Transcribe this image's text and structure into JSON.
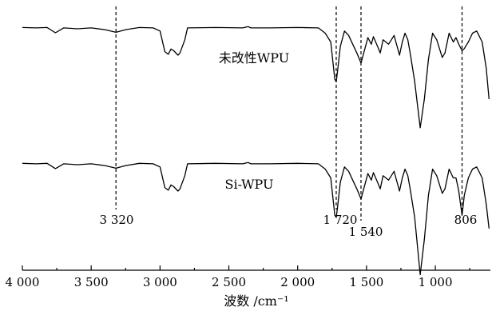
{
  "chart_data": {
    "type": "line",
    "xlabel": "波数 /cm⁻¹",
    "xlim": [
      4000,
      600
    ],
    "x_reversed": true,
    "x_ticks": [
      4000,
      3500,
      3000,
      2500,
      2000,
      1500,
      1000
    ],
    "x_tick_labels": [
      "4 000",
      "3 500",
      "3 000",
      "2 500",
      "2 000",
      "1 500",
      "1 000"
    ],
    "series": [
      {
        "name": "未改性WPU",
        "points": [
          [
            4000,
            0.03
          ],
          [
            3900,
            0.02
          ],
          [
            3820,
            0.03
          ],
          [
            3760,
            -0.09
          ],
          [
            3700,
            0.02
          ],
          [
            3600,
            0.0
          ],
          [
            3500,
            0.02
          ],
          [
            3400,
            -0.02
          ],
          [
            3320,
            -0.08
          ],
          [
            3250,
            -0.02
          ],
          [
            3150,
            0.03
          ],
          [
            3050,
            0.02
          ],
          [
            3000,
            -0.05
          ],
          [
            2965,
            -0.52
          ],
          [
            2940,
            -0.58
          ],
          [
            2920,
            -0.46
          ],
          [
            2900,
            -0.5
          ],
          [
            2870,
            -0.6
          ],
          [
            2855,
            -0.55
          ],
          [
            2820,
            -0.25
          ],
          [
            2800,
            0.02
          ],
          [
            2600,
            0.03
          ],
          [
            2400,
            0.02
          ],
          [
            2360,
            0.05
          ],
          [
            2340,
            0.02
          ],
          [
            2200,
            0.02
          ],
          [
            2000,
            0.03
          ],
          [
            1850,
            0.02
          ],
          [
            1800,
            -0.1
          ],
          [
            1760,
            -0.3
          ],
          [
            1730,
            -1.15
          ],
          [
            1720,
            -1.2
          ],
          [
            1710,
            -0.95
          ],
          [
            1690,
            -0.4
          ],
          [
            1660,
            -0.05
          ],
          [
            1630,
            -0.15
          ],
          [
            1600,
            -0.35
          ],
          [
            1570,
            -0.55
          ],
          [
            1540,
            -0.78
          ],
          [
            1520,
            -0.55
          ],
          [
            1490,
            -0.2
          ],
          [
            1465,
            -0.35
          ],
          [
            1450,
            -0.18
          ],
          [
            1420,
            -0.4
          ],
          [
            1400,
            -0.55
          ],
          [
            1380,
            -0.25
          ],
          [
            1340,
            -0.35
          ],
          [
            1300,
            -0.15
          ],
          [
            1260,
            -0.6
          ],
          [
            1240,
            -0.3
          ],
          [
            1220,
            -0.1
          ],
          [
            1200,
            -0.25
          ],
          [
            1180,
            -0.6
          ],
          [
            1150,
            -1.2
          ],
          [
            1110,
            -2.25
          ],
          [
            1080,
            -1.6
          ],
          [
            1050,
            -0.7
          ],
          [
            1020,
            -0.1
          ],
          [
            990,
            -0.25
          ],
          [
            950,
            -0.65
          ],
          [
            930,
            -0.55
          ],
          [
            900,
            -0.1
          ],
          [
            870,
            -0.3
          ],
          [
            850,
            -0.2
          ],
          [
            830,
            -0.35
          ],
          [
            806,
            -0.5
          ],
          [
            790,
            -0.45
          ],
          [
            760,
            -0.3
          ],
          [
            730,
            -0.1
          ],
          [
            700,
            -0.05
          ],
          [
            660,
            -0.3
          ],
          [
            630,
            -0.9
          ],
          [
            610,
            -1.6
          ]
        ]
      },
      {
        "name": "Si-WPU",
        "points": [
          [
            4000,
            0.03
          ],
          [
            3900,
            0.02
          ],
          [
            3820,
            0.03
          ],
          [
            3760,
            -0.09
          ],
          [
            3700,
            0.02
          ],
          [
            3600,
            0.0
          ],
          [
            3500,
            0.02
          ],
          [
            3400,
            -0.02
          ],
          [
            3320,
            -0.08
          ],
          [
            3250,
            -0.02
          ],
          [
            3150,
            0.03
          ],
          [
            3050,
            0.02
          ],
          [
            3000,
            -0.05
          ],
          [
            2965,
            -0.52
          ],
          [
            2940,
            -0.58
          ],
          [
            2920,
            -0.46
          ],
          [
            2900,
            -0.5
          ],
          [
            2870,
            -0.6
          ],
          [
            2855,
            -0.55
          ],
          [
            2820,
            -0.25
          ],
          [
            2800,
            0.02
          ],
          [
            2600,
            0.03
          ],
          [
            2400,
            0.02
          ],
          [
            2360,
            0.05
          ],
          [
            2340,
            0.02
          ],
          [
            2200,
            0.02
          ],
          [
            2000,
            0.03
          ],
          [
            1850,
            0.02
          ],
          [
            1800,
            -0.1
          ],
          [
            1760,
            -0.3
          ],
          [
            1730,
            -1.15
          ],
          [
            1720,
            -1.2
          ],
          [
            1710,
            -0.95
          ],
          [
            1690,
            -0.4
          ],
          [
            1660,
            -0.05
          ],
          [
            1630,
            -0.15
          ],
          [
            1600,
            -0.35
          ],
          [
            1570,
            -0.55
          ],
          [
            1540,
            -0.78
          ],
          [
            1520,
            -0.55
          ],
          [
            1490,
            -0.2
          ],
          [
            1465,
            -0.35
          ],
          [
            1450,
            -0.18
          ],
          [
            1420,
            -0.4
          ],
          [
            1400,
            -0.55
          ],
          [
            1380,
            -0.25
          ],
          [
            1340,
            -0.35
          ],
          [
            1300,
            -0.15
          ],
          [
            1260,
            -0.6
          ],
          [
            1240,
            -0.3
          ],
          [
            1220,
            -0.1
          ],
          [
            1200,
            -0.25
          ],
          [
            1180,
            -0.6
          ],
          [
            1150,
            -1.2
          ],
          [
            1110,
            -2.5
          ],
          [
            1080,
            -1.7
          ],
          [
            1050,
            -0.7
          ],
          [
            1020,
            -0.1
          ],
          [
            990,
            -0.25
          ],
          [
            950,
            -0.65
          ],
          [
            930,
            -0.55
          ],
          [
            900,
            -0.1
          ],
          [
            870,
            -0.3
          ],
          [
            850,
            -0.3
          ],
          [
            830,
            -0.6
          ],
          [
            806,
            -1.15
          ],
          [
            790,
            -0.7
          ],
          [
            760,
            -0.3
          ],
          [
            730,
            -0.1
          ],
          [
            700,
            -0.05
          ],
          [
            660,
            -0.3
          ],
          [
            630,
            -0.9
          ],
          [
            610,
            -1.45
          ]
        ]
      }
    ],
    "reference_lines": [
      {
        "x": 3320,
        "label": "3 320"
      },
      {
        "x": 1720,
        "label": "1 720"
      },
      {
        "x": 1540,
        "label": "1 540"
      },
      {
        "x": 806,
        "label": "806"
      }
    ],
    "grid": false
  }
}
